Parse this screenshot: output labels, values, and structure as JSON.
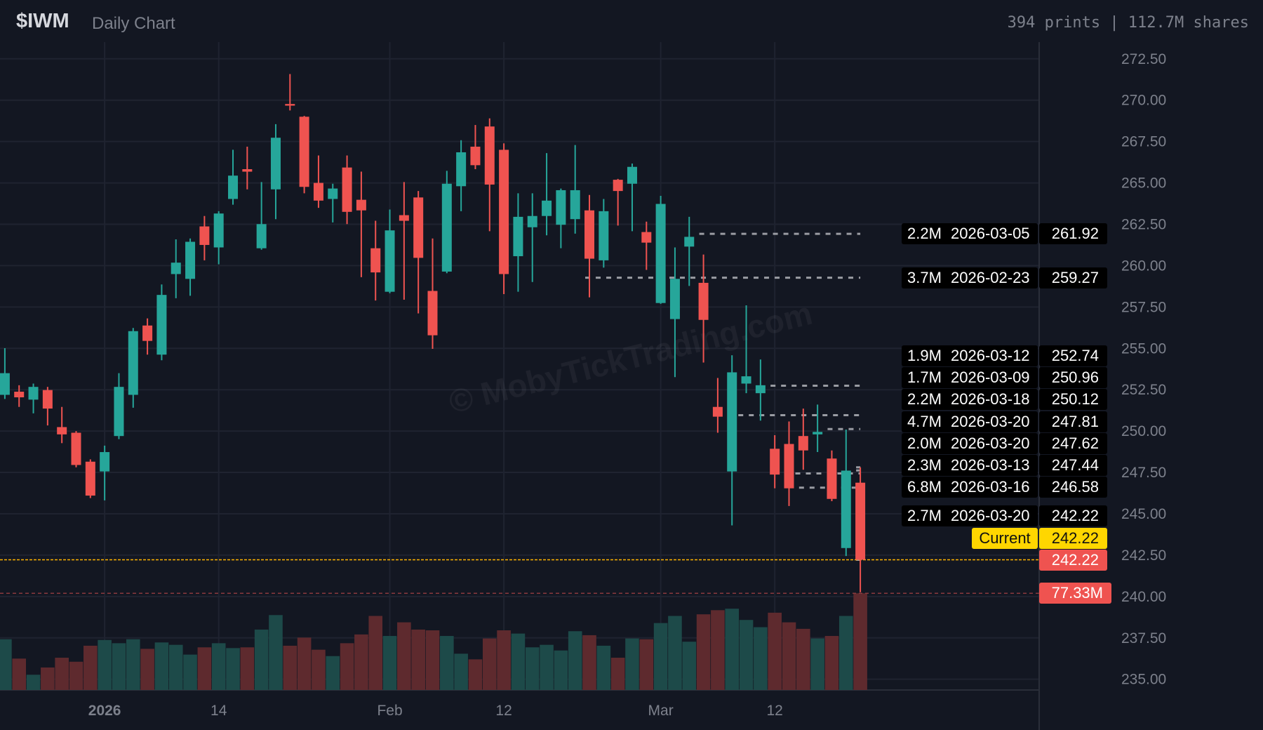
{
  "header": {
    "symbol": "$IWM",
    "subtitle": "Daily Chart",
    "stats": "394 prints | 112.7M shares"
  },
  "watermark": "© MobyTickTrading.com",
  "colors": {
    "background": "#131722",
    "up": "#26a69a",
    "down": "#ef5350",
    "volume_up": "#1d4a49",
    "volume_down": "#5e2a2e",
    "current_line": "#ffb300",
    "current_tag": "#ffd600",
    "level_line": "#9a9ca3",
    "grid": "#1f2330",
    "axis_text": "#7d818c"
  },
  "chart_data": {
    "type": "candlestick",
    "ylim": [
      234.2,
      273.5
    ],
    "y_ticks": [
      "272.50",
      "270.00",
      "267.50",
      "265.00",
      "262.50",
      "260.00",
      "257.50",
      "255.00",
      "252.50",
      "250.00",
      "247.50",
      "245.00",
      "242.50",
      "240.00",
      "237.50",
      "235.00"
    ],
    "x_ticks": [
      {
        "label": "2026",
        "date": "2026-01-02",
        "bold": true
      },
      {
        "label": "14",
        "date": "2026-01-14"
      },
      {
        "label": "Feb",
        "date": "2026-02-02"
      },
      {
        "label": "12",
        "date": "2026-02-12"
      },
      {
        "label": "Mar",
        "date": "2026-03-02"
      },
      {
        "label": "12",
        "date": "2026-03-12"
      }
    ],
    "candles_fields": [
      "date",
      "open",
      "high",
      "low",
      "close",
      "volume_millions"
    ],
    "candles": [
      [
        "2025-12-22",
        252.19,
        255.01,
        251.94,
        253.5,
        40.6
      ],
      [
        "2025-12-23",
        252.38,
        252.77,
        251.46,
        252.04,
        25.1
      ],
      [
        "2025-12-24",
        251.9,
        252.87,
        251.07,
        252.67,
        12.2
      ],
      [
        "2025-12-26",
        252.48,
        252.67,
        250.34,
        251.36,
        18.0
      ],
      [
        "2025-12-29",
        250.24,
        251.46,
        249.27,
        249.8,
        25.8
      ],
      [
        "2025-12-30",
        249.9,
        250.0,
        247.81,
        247.95,
        22.6
      ],
      [
        "2025-12-31",
        248.15,
        248.29,
        245.95,
        246.1,
        35.4
      ],
      [
        "2026-01-02",
        247.56,
        249.12,
        245.81,
        248.73,
        40.0
      ],
      [
        "2026-01-05",
        249.7,
        253.5,
        249.51,
        252.67,
        37.4
      ],
      [
        "2026-01-06",
        252.19,
        256.23,
        251.41,
        256.04,
        40.6
      ],
      [
        "2026-01-07",
        256.38,
        256.81,
        254.62,
        255.45,
        32.9
      ],
      [
        "2026-01-08",
        254.62,
        258.86,
        254.28,
        258.23,
        38.0
      ],
      [
        "2026-01-09",
        259.49,
        261.59,
        258.03,
        260.18,
        36.1
      ],
      [
        "2026-01-12",
        259.2,
        261.64,
        258.18,
        261.44,
        28.3
      ],
      [
        "2026-01-13",
        262.37,
        263.0,
        260.32,
        261.25,
        34.1
      ],
      [
        "2026-01-14",
        261.1,
        263.29,
        260.08,
        263.15,
        37.4
      ],
      [
        "2026-01-15",
        264.03,
        267.0,
        263.68,
        265.44,
        33.5
      ],
      [
        "2026-01-16",
        265.83,
        267.19,
        264.61,
        265.68,
        34.1
      ],
      [
        "2026-01-20",
        261.05,
        265.05,
        260.96,
        262.51,
        48.3
      ],
      [
        "2026-01-21",
        264.61,
        268.55,
        262.81,
        267.73,
        59.9
      ],
      [
        "2026-01-22",
        269.77,
        271.58,
        269.38,
        269.67,
        35.4
      ],
      [
        "2026-01-23",
        269.0,
        269.05,
        264.37,
        264.76,
        41.9
      ],
      [
        "2026-01-26",
        265.0,
        266.66,
        263.49,
        263.93,
        32.2
      ],
      [
        "2026-01-27",
        264.03,
        264.95,
        262.61,
        264.66,
        27.1
      ],
      [
        "2026-01-28",
        265.93,
        266.66,
        262.51,
        263.25,
        37.4
      ],
      [
        "2026-01-29",
        263.98,
        265.68,
        259.3,
        263.34,
        44.4
      ],
      [
        "2026-01-30",
        261.05,
        262.71,
        257.89,
        259.59,
        59.2
      ],
      [
        "2026-02-02",
        258.42,
        263.39,
        258.33,
        262.13,
        43.2
      ],
      [
        "2026-02-03",
        263.05,
        265.05,
        257.94,
        262.71,
        54.1
      ],
      [
        "2026-02-04",
        264.12,
        264.51,
        257.11,
        260.47,
        48.3
      ],
      [
        "2026-02-05",
        258.47,
        261.64,
        254.97,
        255.79,
        47.7
      ],
      [
        "2026-02-06",
        259.64,
        265.73,
        259.54,
        264.95,
        43.2
      ],
      [
        "2026-02-09",
        264.8,
        267.58,
        263.29,
        266.85,
        29.0
      ],
      [
        "2026-02-10",
        267.19,
        268.5,
        265.83,
        266.07,
        24.5
      ],
      [
        "2026-02-11",
        268.41,
        268.9,
        262.08,
        264.9,
        41.2
      ],
      [
        "2026-02-12",
        267.0,
        267.39,
        258.28,
        259.49,
        47.7
      ],
      [
        "2026-02-13",
        260.57,
        264.37,
        258.42,
        262.95,
        45.1
      ],
      [
        "2026-02-17",
        262.32,
        264.37,
        259.01,
        263.0,
        34.1
      ],
      [
        "2026-02-18",
        263.0,
        266.8,
        261.83,
        263.93,
        36.1
      ],
      [
        "2026-02-19",
        262.47,
        264.66,
        261.05,
        264.56,
        31.6
      ],
      [
        "2026-02-20",
        262.81,
        267.29,
        261.93,
        264.56,
        47.0
      ],
      [
        "2026-02-23",
        263.34,
        264.27,
        258.08,
        260.42,
        43.8
      ],
      [
        "2026-02-24",
        260.32,
        264.03,
        259.88,
        263.29,
        35.4
      ],
      [
        "2026-02-25",
        265.19,
        265.24,
        262.42,
        264.51,
        25.8
      ],
      [
        "2026-02-26",
        264.95,
        266.17,
        262.08,
        265.97,
        41.2
      ],
      [
        "2026-02-27",
        262.03,
        262.66,
        259.74,
        261.39,
        40.6
      ],
      [
        "2026-03-02",
        257.74,
        264.22,
        257.69,
        263.73,
        53.5
      ],
      [
        "2026-03-03",
        256.77,
        261.1,
        253.26,
        259.2,
        59.2
      ],
      [
        "2026-03-04",
        261.15,
        262.95,
        258.77,
        261.74,
        38.6
      ],
      [
        "2026-03-05",
        258.96,
        260.67,
        254.14,
        256.72,
        60.5
      ],
      [
        "2026-03-06",
        251.46,
        253.21,
        249.9,
        250.87,
        63.8
      ],
      [
        "2026-03-09",
        247.56,
        254.58,
        244.3,
        253.55,
        65.0
      ],
      [
        "2026-03-10",
        252.87,
        257.6,
        252.29,
        253.31,
        56.0
      ],
      [
        "2026-03-11",
        252.29,
        254.33,
        250.63,
        252.77,
        50.2
      ],
      [
        "2026-03-12",
        248.93,
        249.75,
        246.54,
        247.37,
        61.8
      ],
      [
        "2026-03-13",
        249.22,
        250.58,
        245.47,
        246.54,
        54.1
      ],
      [
        "2026-03-16",
        249.7,
        251.36,
        247.66,
        248.83,
        48.9
      ],
      [
        "2026-03-17",
        249.8,
        251.6,
        248.73,
        249.95,
        41.2
      ],
      [
        "2026-03-18",
        248.34,
        248.83,
        245.76,
        245.9,
        43.2
      ],
      [
        "2026-03-19",
        242.93,
        250.09,
        242.45,
        247.61,
        59.2
      ],
      [
        "2026-03-20",
        246.88,
        247.81,
        240.26,
        242.22,
        77.33
      ]
    ],
    "levels": [
      {
        "size": "2.2M",
        "date": "2026-03-05",
        "price": "261.92"
      },
      {
        "size": "3.7M",
        "date": "2026-02-23",
        "price": "259.27"
      },
      {
        "size": "1.9M",
        "date": "2026-03-12",
        "price": "252.74"
      },
      {
        "size": "1.7M",
        "date": "2026-03-09",
        "price": "250.96"
      },
      {
        "size": "2.2M",
        "date": "2026-03-18",
        "price": "250.12"
      },
      {
        "size": "4.7M",
        "date": "2026-03-20",
        "price": "247.81"
      },
      {
        "size": "2.0M",
        "date": "2026-03-20",
        "price": "247.62"
      },
      {
        "size": "2.3M",
        "date": "2026-03-13",
        "price": "247.44"
      },
      {
        "size": "6.8M",
        "date": "2026-03-16",
        "price": "246.58"
      },
      {
        "size": "2.7M",
        "date": "2026-03-20",
        "price": "242.22"
      }
    ],
    "current": {
      "label": "Current",
      "price": "242.22"
    },
    "last_price": "242.22",
    "last_volume": "77.33M"
  }
}
